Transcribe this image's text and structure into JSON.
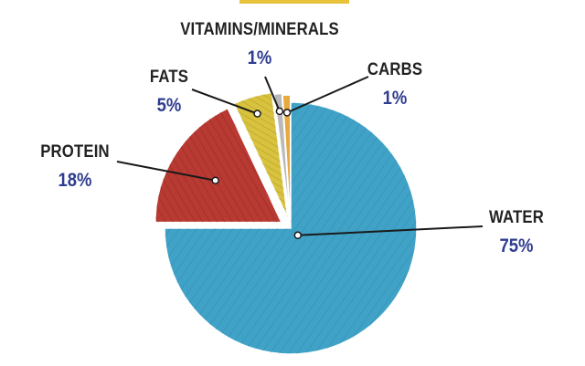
{
  "chart_data": {
    "type": "pie",
    "title": "",
    "slices": [
      {
        "label": "WATER",
        "percent_label": "75%",
        "value": 75,
        "color": "#3fa2c6"
      },
      {
        "label": "PROTEIN",
        "percent_label": "18%",
        "value": 18,
        "color": "#b83a32"
      },
      {
        "label": "FATS",
        "percent_label": "5%",
        "value": 5,
        "color": "#d8c23e"
      },
      {
        "label": "VITAMINS/MINERALS",
        "percent_label": "1%",
        "value": 1,
        "color": "#b9b9b9"
      },
      {
        "label": "CARBS",
        "percent_label": "1%",
        "value": 1,
        "color": "#e8a93d"
      }
    ],
    "label_color": "#222222",
    "value_color": "#2f3d8f",
    "exploded": true,
    "legend": "none"
  }
}
